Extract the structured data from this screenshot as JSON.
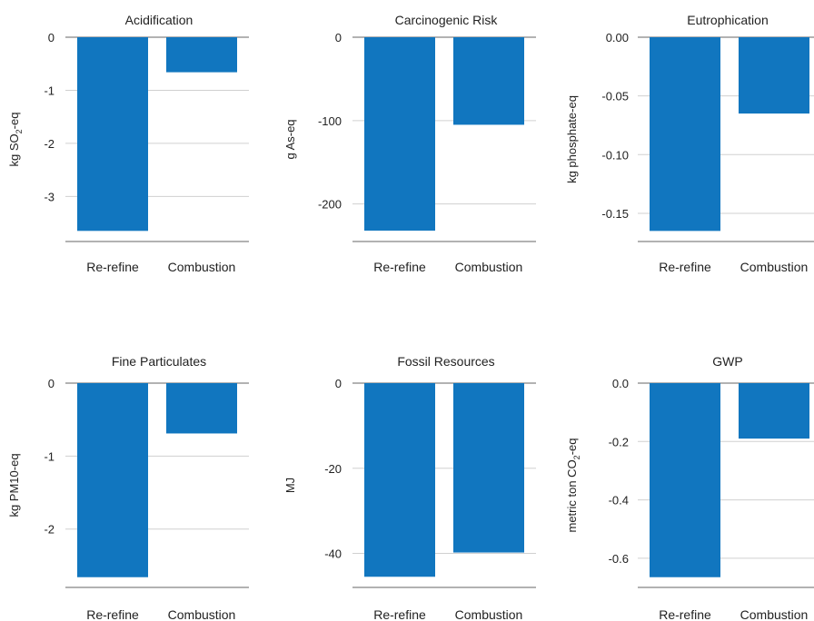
{
  "chart_data": [
    {
      "type": "bar",
      "title": "Acidification",
      "categories": [
        "Re-refine",
        "Combustion"
      ],
      "values": [
        -3.65,
        -0.66
      ],
      "ylabel_parts": [
        "kg SO",
        "2",
        "-eq"
      ],
      "ylim": [
        -3.85,
        0
      ],
      "yticks": [
        0,
        -1,
        -2,
        -3
      ],
      "ytick_labels": [
        "0",
        "-1",
        "-2",
        "-3"
      ],
      "grid": true
    },
    {
      "type": "bar",
      "title": "Carcinogenic Risk",
      "categories": [
        "Re-refine",
        "Combustion"
      ],
      "values": [
        -232,
        -105
      ],
      "ylabel_parts": [
        "g As-eq",
        "",
        ""
      ],
      "ylim": [
        -245,
        0
      ],
      "yticks": [
        0,
        -100,
        -200
      ],
      "ytick_labels": [
        "0",
        "-100",
        "-200"
      ],
      "grid": true
    },
    {
      "type": "bar",
      "title": "Eutrophication",
      "categories": [
        "Re-refine",
        "Combustion"
      ],
      "values": [
        -0.165,
        -0.065
      ],
      "ylabel_parts": [
        "kg phosphate-eq",
        "",
        ""
      ],
      "ylim": [
        -0.174,
        0
      ],
      "yticks": [
        0,
        -0.05,
        -0.1,
        -0.15
      ],
      "ytick_labels": [
        "0.00",
        "-0.05",
        "-0.10",
        "-0.15"
      ],
      "grid": true
    },
    {
      "type": "bar",
      "title": "Fine Particulates",
      "categories": [
        "Re-refine",
        "Combustion"
      ],
      "values": [
        -2.66,
        -0.69
      ],
      "ylabel_parts": [
        "kg PM10-eq",
        "",
        ""
      ],
      "ylim": [
        -2.8,
        0
      ],
      "yticks": [
        0,
        -1,
        -2
      ],
      "ytick_labels": [
        "0",
        "-1",
        "-2"
      ],
      "grid": true
    },
    {
      "type": "bar",
      "title": "Fossil Resources",
      "categories": [
        "Re-refine",
        "Combustion"
      ],
      "values": [
        -45.5,
        -39.8
      ],
      "ylabel_parts": [
        "MJ",
        "",
        ""
      ],
      "ylim": [
        -48,
        0
      ],
      "yticks": [
        0,
        -20,
        -40
      ],
      "ytick_labels": [
        "0",
        "-20",
        "-40"
      ],
      "grid": true
    },
    {
      "type": "bar",
      "title": "GWP",
      "categories": [
        "Re-refine",
        "Combustion"
      ],
      "values": [
        -0.665,
        -0.19
      ],
      "ylabel_parts": [
        "metric ton CO",
        "2",
        "-eq"
      ],
      "ylim": [
        -0.7,
        0
      ],
      "yticks": [
        0,
        -0.2,
        -0.4,
        -0.6
      ],
      "ytick_labels": [
        "0.0",
        "-0.2",
        "-0.4",
        "-0.6"
      ],
      "grid": true
    }
  ],
  "colors": {
    "bar": "#1176bf",
    "grid": "#d0d0d0",
    "axis": "#666666",
    "text": "#222222"
  }
}
